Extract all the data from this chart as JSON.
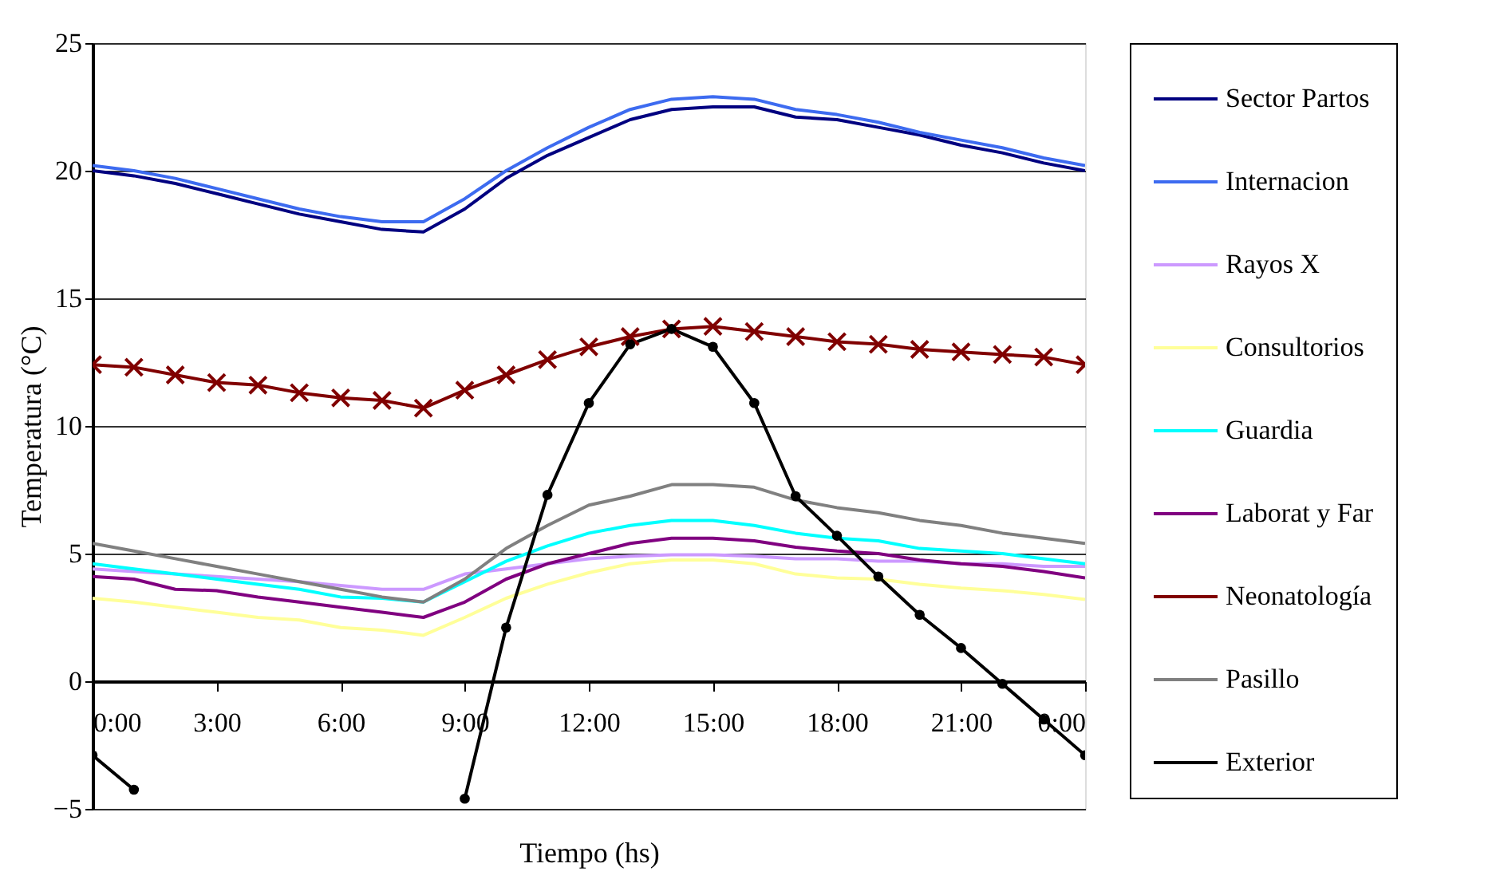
{
  "chart_data": {
    "type": "line",
    "xlabel": "Tiempo (hs)",
    "ylabel": "Temperatura (°C)",
    "x": [
      0,
      1,
      2,
      3,
      4,
      5,
      6,
      7,
      8,
      9,
      10,
      11,
      12,
      13,
      14,
      15,
      16,
      17,
      18,
      19,
      20,
      21,
      22,
      23,
      24
    ],
    "xlim": [
      0,
      24
    ],
    "xticks": [
      {
        "value": 0,
        "label": "0:00"
      },
      {
        "value": 3,
        "label": "3:00"
      },
      {
        "value": 6,
        "label": "6:00"
      },
      {
        "value": 9,
        "label": "9:00"
      },
      {
        "value": 12,
        "label": "12:00"
      },
      {
        "value": 15,
        "label": "15:00"
      },
      {
        "value": 18,
        "label": "18:00"
      },
      {
        "value": 21,
        "label": "21:00"
      },
      {
        "value": 24,
        "label": "0:00"
      }
    ],
    "ylim": [
      -5,
      25
    ],
    "yticks": [
      -5,
      0,
      5,
      10,
      15,
      20,
      25
    ],
    "grid": "y",
    "legend": "right",
    "line_style": "solid",
    "series": [
      {
        "name": "Sector Partos",
        "color": "#000080",
        "values": [
          20.0,
          19.8,
          19.5,
          19.1,
          18.7,
          18.3,
          18.0,
          17.7,
          17.6,
          18.5,
          19.7,
          20.6,
          21.3,
          22.0,
          22.4,
          22.5,
          22.5,
          22.1,
          22.0,
          21.7,
          21.4,
          21.0,
          20.7,
          20.3,
          20.0
        ]
      },
      {
        "name": "Internacion",
        "color": "#3d6bf0",
        "values": [
          20.2,
          20.0,
          19.7,
          19.3,
          18.9,
          18.5,
          18.2,
          18.0,
          18.0,
          18.9,
          20.0,
          20.9,
          21.7,
          22.4,
          22.8,
          22.9,
          22.8,
          22.4,
          22.2,
          21.9,
          21.5,
          21.2,
          20.9,
          20.5,
          20.2
        ]
      },
      {
        "name": "Rayos X",
        "color": "#cc99ff",
        "values": [
          4.4,
          4.3,
          4.2,
          4.1,
          4.0,
          3.9,
          3.75,
          3.6,
          3.6,
          4.2,
          4.4,
          4.6,
          4.8,
          4.9,
          4.95,
          4.95,
          4.9,
          4.8,
          4.8,
          4.7,
          4.7,
          4.6,
          4.6,
          4.5,
          4.5
        ]
      },
      {
        "name": "Consultorios",
        "color": "#ffff99",
        "values": [
          3.25,
          3.1,
          2.9,
          2.7,
          2.5,
          2.4,
          2.1,
          2.0,
          1.8,
          2.5,
          3.25,
          3.8,
          4.25,
          4.6,
          4.75,
          4.75,
          4.6,
          4.2,
          4.05,
          4.0,
          3.8,
          3.65,
          3.55,
          3.4,
          3.2
        ]
      },
      {
        "name": "Guardia",
        "color": "#00ffff",
        "values": [
          4.6,
          4.4,
          4.2,
          4.0,
          3.8,
          3.6,
          3.3,
          3.25,
          3.1,
          3.9,
          4.7,
          5.3,
          5.8,
          6.1,
          6.3,
          6.3,
          6.1,
          5.8,
          5.6,
          5.5,
          5.2,
          5.1,
          5.0,
          4.8,
          4.6
        ]
      },
      {
        "name": "Laborat y Far",
        "color": "#800080",
        "values": [
          4.1,
          4.0,
          3.6,
          3.55,
          3.3,
          3.1,
          2.9,
          2.7,
          2.5,
          3.1,
          4.0,
          4.6,
          5.0,
          5.4,
          5.6,
          5.6,
          5.5,
          5.25,
          5.1,
          5.0,
          4.75,
          4.6,
          4.5,
          4.3,
          4.05
        ]
      },
      {
        "name": "Neonatología",
        "color": "#800000",
        "marker": "cross",
        "values": [
          12.4,
          12.3,
          12.0,
          11.7,
          11.6,
          11.3,
          11.1,
          11.0,
          10.7,
          11.4,
          12.0,
          12.6,
          13.1,
          13.5,
          13.8,
          13.9,
          13.7,
          13.5,
          13.3,
          13.2,
          13.0,
          12.9,
          12.8,
          12.7,
          12.4
        ]
      },
      {
        "name": "Pasillo",
        "color": "#808080",
        "values": [
          5.4,
          5.1,
          4.8,
          4.5,
          4.2,
          3.9,
          3.6,
          3.3,
          3.1,
          4.0,
          5.2,
          6.1,
          6.9,
          7.25,
          7.7,
          7.7,
          7.6,
          7.1,
          6.8,
          6.6,
          6.3,
          6.1,
          5.8,
          5.6,
          5.4
        ]
      },
      {
        "name": "Exterior",
        "color": "#000000",
        "marker": "circle",
        "values": [
          -2.9,
          -4.25,
          null,
          null,
          null,
          null,
          null,
          null,
          null,
          -4.6,
          2.1,
          7.3,
          10.9,
          13.2,
          13.8,
          13.1,
          10.9,
          7.25,
          5.7,
          4.1,
          2.6,
          1.3,
          -0.1,
          -1.5,
          -2.9
        ]
      }
    ]
  }
}
